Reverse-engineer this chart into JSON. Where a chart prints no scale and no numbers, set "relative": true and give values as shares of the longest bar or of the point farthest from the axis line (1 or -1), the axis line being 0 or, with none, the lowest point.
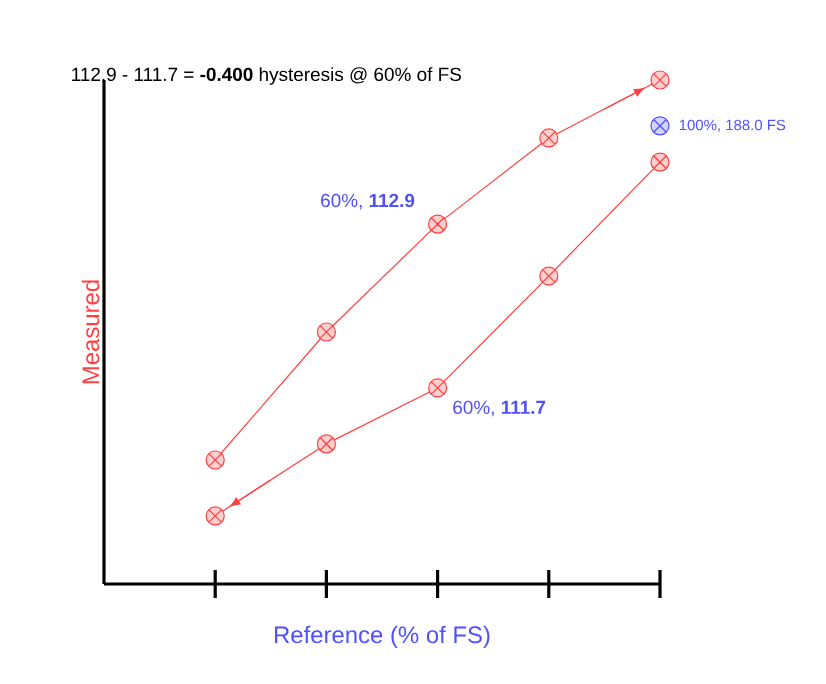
{
  "chart_data": {
    "type": "line",
    "title": "112.9 - 111.7 = **-0.400** hysteresis @ 60% of FS",
    "xlabel": "Reference (% of FS)",
    "ylabel": "Measured",
    "relative": true,
    "marker": "cross",
    "line_style": "solid",
    "categories": [
      null,
      null,
      null,
      null,
      null
    ],
    "series": [
      {
        "color": "#ff4040",
        "values": [
          0.246,
          0.5,
          0.714,
          0.885,
          1.0
        ]
      },
      {
        "color": "#ff4040",
        "values": [
          0.135,
          0.278,
          0.389,
          0.611,
          0.837
        ]
      },
      {
        "name": "100%, 188.0 FS",
        "color": "#5050ff",
        "values": [
          null,
          null,
          null,
          null,
          0.909
        ]
      }
    ],
    "annotations": [
      "60%, **112.9**",
      "60%, **111.7**"
    ]
  }
}
